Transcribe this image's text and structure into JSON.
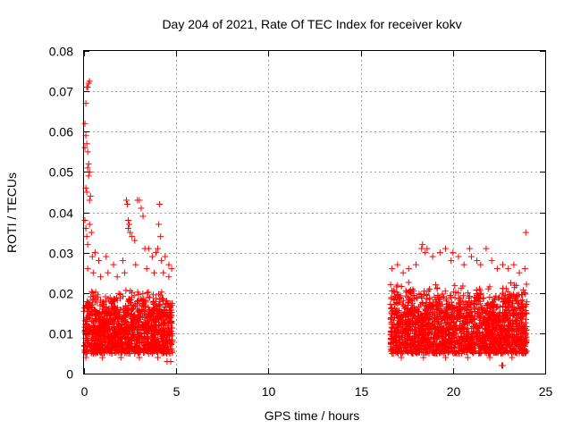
{
  "chart_data": {
    "type": "scatter",
    "title": "Day 204 of 2021, Rate Of TEC Index for receiver kokv",
    "xlabel": "GPS time / hours",
    "ylabel": "ROTI / TECUs",
    "xlim": [
      0,
      25
    ],
    "ylim": [
      0,
      0.08
    ],
    "x_ticks": [
      0,
      5,
      10,
      15,
      20,
      25
    ],
    "x_tick_labels": [
      "0",
      "5",
      "10",
      "15",
      "20",
      "25"
    ],
    "y_ticks": [
      0,
      0.01,
      0.02,
      0.03,
      0.04,
      0.05,
      0.06,
      0.07,
      0.08
    ],
    "y_tick_labels": [
      "0",
      "0.01",
      "0.02",
      "0.03",
      "0.04",
      "0.05",
      "0.06",
      "0.07",
      "0.08"
    ],
    "grid": true,
    "marker": "+",
    "color": "#ff0000",
    "series": [
      {
        "name": "ROTI",
        "points": [
          [
            0.05,
            0.062
          ],
          [
            0.1,
            0.067
          ],
          [
            0.15,
            0.071
          ],
          [
            0.2,
            0.071
          ],
          [
            0.25,
            0.072
          ],
          [
            0.3,
            0.0725
          ],
          [
            0.05,
            0.056
          ],
          [
            0.1,
            0.059
          ],
          [
            0.15,
            0.057
          ],
          [
            0.2,
            0.055
          ],
          [
            0.25,
            0.052
          ],
          [
            0.3,
            0.05
          ],
          [
            0.1,
            0.046
          ],
          [
            0.15,
            0.045
          ],
          [
            0.2,
            0.051
          ],
          [
            0.25,
            0.049
          ],
          [
            0.3,
            0.043
          ],
          [
            0.35,
            0.044
          ],
          [
            0.05,
            0.038
          ],
          [
            0.1,
            0.036
          ],
          [
            0.15,
            0.034
          ],
          [
            0.2,
            0.032
          ],
          [
            0.3,
            0.037
          ],
          [
            0.4,
            0.035
          ],
          [
            0.45,
            0.029
          ],
          [
            0.6,
            0.03
          ],
          [
            0.8,
            0.028
          ],
          [
            1.2,
            0.029
          ],
          [
            1.6,
            0.027
          ],
          [
            2.1,
            0.028
          ],
          [
            2.3,
            0.043
          ],
          [
            2.35,
            0.042
          ],
          [
            2.4,
            0.038
          ],
          [
            2.45,
            0.037
          ],
          [
            2.4,
            0.036
          ],
          [
            2.5,
            0.035
          ],
          [
            2.6,
            0.034
          ],
          [
            2.75,
            0.033
          ],
          [
            2.9,
            0.043
          ],
          [
            3.0,
            0.043
          ],
          [
            3.1,
            0.041
          ],
          [
            3.2,
            0.039
          ],
          [
            3.3,
            0.031
          ],
          [
            3.5,
            0.031
          ],
          [
            3.7,
            0.029
          ],
          [
            3.9,
            0.03
          ],
          [
            4.0,
            0.031
          ],
          [
            4.05,
            0.037
          ],
          [
            4.1,
            0.042
          ],
          [
            4.15,
            0.034
          ],
          [
            4.2,
            0.028
          ],
          [
            4.4,
            0.029
          ],
          [
            4.6,
            0.027
          ],
          [
            4.75,
            0.026
          ],
          [
            0.2,
            0.026
          ],
          [
            0.5,
            0.025
          ],
          [
            0.9,
            0.024
          ],
          [
            1.3,
            0.025
          ],
          [
            1.8,
            0.024
          ],
          [
            2.2,
            0.025
          ],
          [
            2.8,
            0.027
          ],
          [
            3.4,
            0.026
          ],
          [
            3.8,
            0.025
          ],
          [
            4.3,
            0.025
          ],
          [
            4.6,
            0.024
          ],
          [
            0.1,
            0.004
          ],
          [
            0.5,
            0.005
          ],
          [
            1.0,
            0.004
          ],
          [
            1.5,
            0.005
          ],
          [
            2.0,
            0.004
          ],
          [
            2.5,
            0.005
          ],
          [
            3.0,
            0.004
          ],
          [
            3.5,
            0.005
          ],
          [
            4.0,
            0.004
          ],
          [
            4.5,
            0.003
          ],
          [
            4.7,
            0.003
          ],
          [
            16.7,
            0.026
          ],
          [
            17.0,
            0.027
          ],
          [
            17.3,
            0.025
          ],
          [
            17.6,
            0.026
          ],
          [
            18.0,
            0.027
          ],
          [
            18.3,
            0.031
          ],
          [
            18.35,
            0.032
          ],
          [
            18.5,
            0.03
          ],
          [
            18.6,
            0.031
          ],
          [
            18.9,
            0.029
          ],
          [
            19.3,
            0.03
          ],
          [
            19.6,
            0.031
          ],
          [
            19.9,
            0.028
          ],
          [
            20.0,
            0.03
          ],
          [
            20.3,
            0.029
          ],
          [
            20.6,
            0.027
          ],
          [
            20.9,
            0.031
          ],
          [
            21.0,
            0.029
          ],
          [
            21.3,
            0.028
          ],
          [
            21.5,
            0.027
          ],
          [
            21.8,
            0.031
          ],
          [
            22.1,
            0.028
          ],
          [
            22.4,
            0.026
          ],
          [
            22.7,
            0.027
          ],
          [
            23.0,
            0.026
          ],
          [
            23.3,
            0.027
          ],
          [
            23.6,
            0.025
          ],
          [
            23.9,
            0.026
          ],
          [
            23.95,
            0.035
          ],
          [
            16.7,
            0.005
          ],
          [
            17.2,
            0.004
          ],
          [
            17.8,
            0.005
          ],
          [
            18.4,
            0.004
          ],
          [
            19.0,
            0.005
          ],
          [
            19.6,
            0.004
          ],
          [
            20.2,
            0.005
          ],
          [
            20.8,
            0.004
          ],
          [
            21.4,
            0.005
          ],
          [
            22.0,
            0.004
          ],
          [
            22.6,
            0.005
          ],
          [
            23.2,
            0.004
          ],
          [
            23.8,
            0.005
          ],
          [
            22.65,
            0.002
          ],
          [
            22.7,
            0.002
          ]
        ],
        "clusters": [
          {
            "x_range": [
              0,
              4.8
            ],
            "y_range": [
              0.005,
              0.022
            ]
          },
          {
            "x_range": [
              16.6,
              24
            ],
            "y_range": [
              0.005,
              0.023
            ]
          }
        ]
      }
    ]
  }
}
